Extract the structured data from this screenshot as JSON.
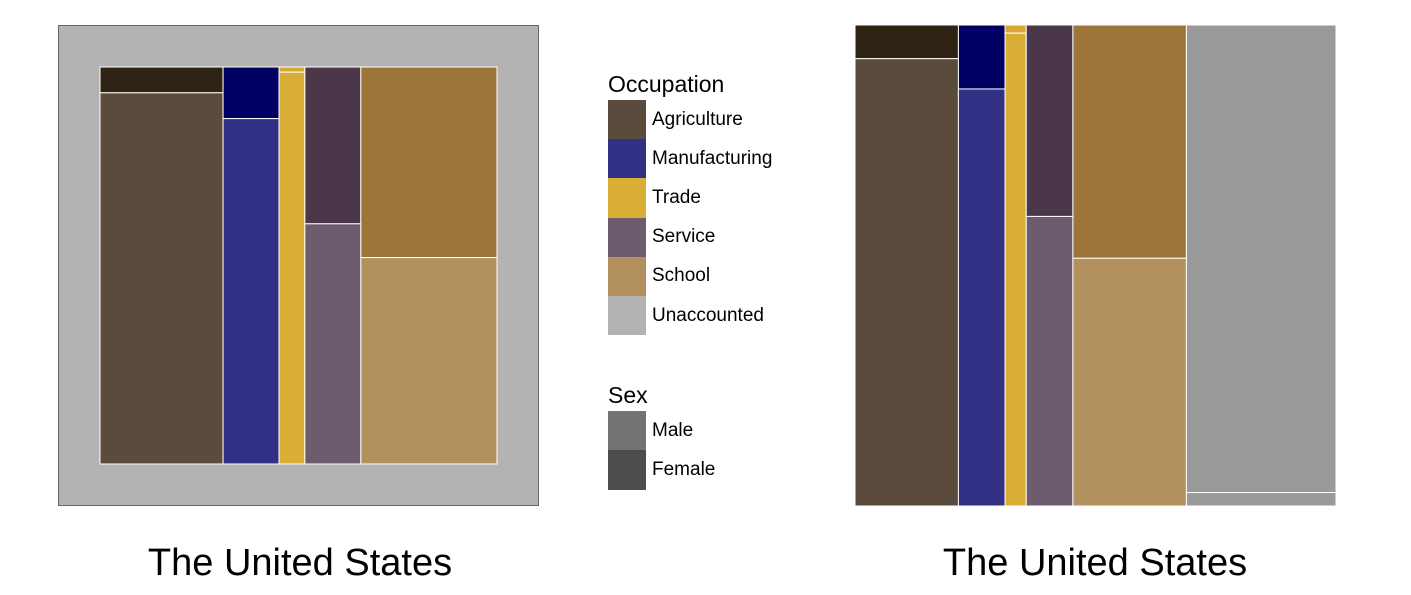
{
  "chart_data": [
    {
      "type": "mosaic",
      "title": "The United States",
      "categories": [
        "Agriculture",
        "Manufacturing",
        "Trade",
        "Service",
        "School"
      ],
      "widths": [
        0.31,
        0.141,
        0.065,
        0.141,
        0.343
      ],
      "female_share": [
        0.065,
        0.13,
        0.013,
        0.395,
        0.48
      ],
      "background": "Unaccounted"
    },
    {
      "type": "mosaic",
      "title": "The United States",
      "categories": [
        "Agriculture",
        "Manufacturing",
        "Trade",
        "Service",
        "School",
        "Unaccounted"
      ],
      "widths": [
        0.215,
        0.097,
        0.044,
        0.097,
        0.236,
        0.311
      ],
      "female_share": [
        0.07,
        0.133,
        0.017,
        0.398,
        0.485,
        0.972
      ]
    }
  ],
  "legend": {
    "occupation_title": "Occupation",
    "occupation": [
      {
        "label": "Agriculture",
        "color": "#5a4b3c"
      },
      {
        "label": "Manufacturing",
        "color": "#323084"
      },
      {
        "label": "Trade",
        "color": "#d8ae36"
      },
      {
        "label": "Service",
        "color": "#6d5c6d"
      },
      {
        "label": "School",
        "color": "#b2915f"
      },
      {
        "label": "Unaccounted",
        "color": "#b3b3b3"
      }
    ],
    "sex_title": "Sex",
    "sex": [
      {
        "label": "Male",
        "color": "#737373"
      },
      {
        "label": "Female",
        "color": "#4d4d4d"
      }
    ]
  },
  "colors": {
    "female": {
      "Agriculture": "#2f2414",
      "Manufacturing": "#010164",
      "Trade": "#d7a934",
      "Service": "#4b374a",
      "School": "#9e7538",
      "Unaccounted": "#999999"
    },
    "male": {
      "Agriculture": "#5a4b3c",
      "Manufacturing": "#323084",
      "Trade": "#d8ae36",
      "Service": "#6d5c6d",
      "School": "#b2915f",
      "Unaccounted": "#9a9a9a"
    },
    "frame": "#b3b3b3"
  }
}
